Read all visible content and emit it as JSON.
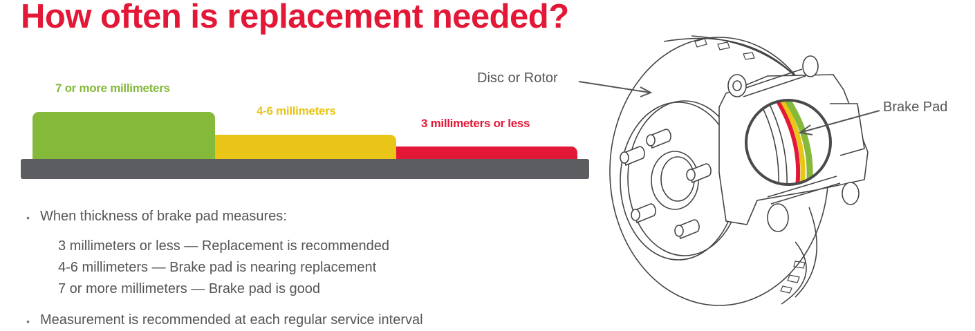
{
  "title": "How often is replacement needed?",
  "levels": [
    {
      "label": "7 or more millimeters",
      "color": "#84b93a"
    },
    {
      "label": "4-6 millimeters",
      "color": "#e8c516"
    },
    {
      "label": "3 millimeters or less",
      "color": "#e31837"
    }
  ],
  "notes": {
    "intro": "When thickness of brake pad measures:",
    "lines": [
      "3 millimeters or less — Replacement is recommended",
      "4-6 millimeters — Brake pad is nearing replacement",
      "7 or more millimeters — Brake pad is good"
    ],
    "footer": "Measurement is recommended at each regular service interval"
  },
  "diagram": {
    "rotor_label": "Disc or Rotor",
    "pad_label": "Brake Pad"
  }
}
